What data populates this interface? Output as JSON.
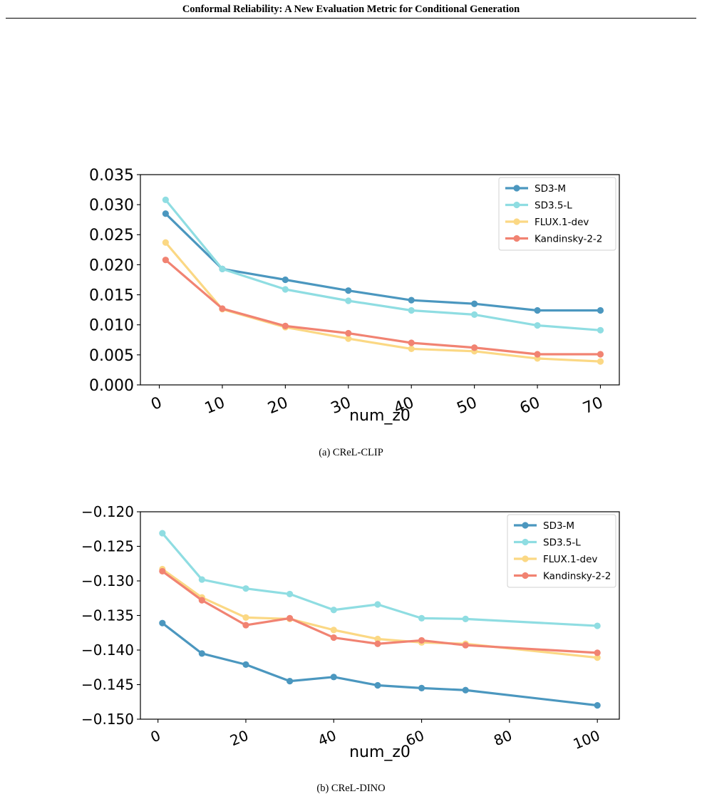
{
  "header": {
    "title": "Conformal Reliability: A New Evaluation Metric for Conditional Generation"
  },
  "figures": [
    {
      "caption": "(a) CReL-CLIP"
    },
    {
      "caption": "(b) CReL-DINO"
    }
  ],
  "colors": {
    "SD3-M": "#4b97bf",
    "SD3.5-L": "#8fdde2",
    "FLUX.1-dev": "#fbd884",
    "Kandinsky-2-2": "#f18372"
  },
  "chart_data": [
    {
      "type": "line",
      "title": "",
      "xlabel": "num_z0",
      "ylabel": "",
      "x": [
        1,
        10,
        20,
        30,
        40,
        50,
        60,
        70
      ],
      "xlim": [
        -3,
        73
      ],
      "ylim": [
        0,
        0.035
      ],
      "xticks": [
        0,
        10,
        20,
        30,
        40,
        50,
        60,
        70
      ],
      "xtick_labels": [
        "0",
        "10",
        "20",
        "30",
        "40",
        "50",
        "60",
        "70"
      ],
      "yticks": [
        0,
        0.005,
        0.01,
        0.015,
        0.02,
        0.025,
        0.03,
        0.035
      ],
      "ytick_labels": [
        "0.000",
        "0.005",
        "0.010",
        "0.015",
        "0.020",
        "0.025",
        "0.030",
        "0.035"
      ],
      "legend_position": "top-right",
      "grid": false,
      "series": [
        {
          "name": "SD3-M",
          "color": "#4b97bf",
          "values": [
            0.0285,
            0.0193,
            0.0175,
            0.0157,
            0.0141,
            0.0135,
            0.0124,
            0.0124
          ]
        },
        {
          "name": "SD3.5-L",
          "color": "#8fdde2",
          "values": [
            0.0308,
            0.0193,
            0.0159,
            0.014,
            0.0124,
            0.0117,
            0.0099,
            0.0091
          ]
        },
        {
          "name": "FLUX.1-dev",
          "color": "#fbd884",
          "values": [
            0.0237,
            0.0126,
            0.0096,
            0.0077,
            0.006,
            0.0056,
            0.0044,
            0.0039
          ]
        },
        {
          "name": "Kandinsky-2-2",
          "color": "#f18372",
          "values": [
            0.0208,
            0.0127,
            0.0098,
            0.0086,
            0.007,
            0.0062,
            0.0051,
            0.0051
          ]
        }
      ]
    },
    {
      "type": "line",
      "title": "",
      "xlabel": "num_z0",
      "ylabel": "",
      "x": [
        1,
        10,
        20,
        30,
        40,
        50,
        60,
        70,
        100
      ],
      "xlim": [
        -4,
        105
      ],
      "ylim": [
        -0.15,
        -0.12
      ],
      "xticks": [
        0,
        20,
        40,
        60,
        80,
        100
      ],
      "xtick_labels": [
        "0",
        "20",
        "40",
        "60",
        "80",
        "100"
      ],
      "yticks": [
        -0.15,
        -0.145,
        -0.14,
        -0.135,
        -0.13,
        -0.125,
        -0.12
      ],
      "ytick_labels": [
        "−0.150",
        "−0.145",
        "−0.140",
        "−0.135",
        "−0.130",
        "−0.125",
        "−0.120"
      ],
      "legend_position": "top-right",
      "grid": false,
      "series": [
        {
          "name": "SD3-M",
          "color": "#4b97bf",
          "values": [
            -0.1361,
            -0.1405,
            -0.1421,
            -0.1445,
            -0.1439,
            -0.1451,
            -0.1455,
            -0.1458,
            -0.148
          ]
        },
        {
          "name": "SD3.5-L",
          "color": "#8fdde2",
          "values": [
            -0.1231,
            -0.1298,
            -0.1311,
            -0.1319,
            -0.1342,
            -0.1334,
            -0.1354,
            -0.1355,
            -0.1365
          ]
        },
        {
          "name": "FLUX.1-dev",
          "color": "#fbd884",
          "values": [
            -0.1283,
            -0.1324,
            -0.1353,
            -0.1355,
            -0.1371,
            -0.1384,
            -0.1389,
            -0.1391,
            -0.1411
          ]
        },
        {
          "name": "Kandinsky-2-2",
          "color": "#f18372",
          "values": [
            -0.1286,
            -0.1328,
            -0.1364,
            -0.1354,
            -0.1382,
            -0.1391,
            -0.1386,
            -0.1393,
            -0.1404
          ]
        }
      ]
    }
  ]
}
